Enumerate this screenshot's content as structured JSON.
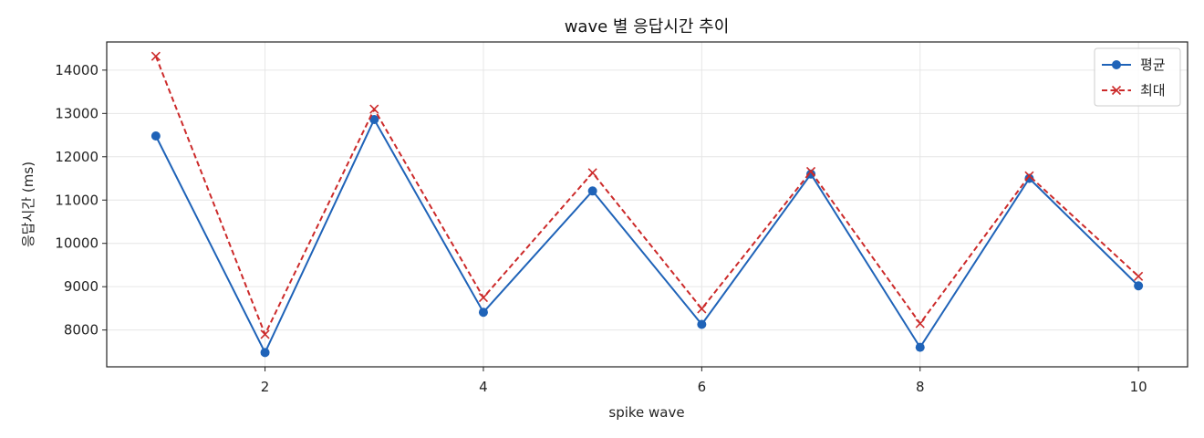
{
  "chart_data": {
    "type": "line",
    "title": "wave 별 응답시간 추이",
    "xlabel": "spike wave",
    "ylabel": "응답시간 (ms)",
    "x": [
      1,
      2,
      3,
      4,
      5,
      6,
      7,
      8,
      9,
      10
    ],
    "x_ticks": [
      2,
      4,
      6,
      8,
      10
    ],
    "y_ticks": [
      8000,
      9000,
      10000,
      11000,
      12000,
      13000,
      14000
    ],
    "xlim": [
      0.55,
      10.45
    ],
    "ylim": [
      7150,
      14650
    ],
    "grid": true,
    "legend_position": "top-right",
    "series": [
      {
        "name": "평균",
        "values": [
          12480,
          7480,
          12860,
          8410,
          11210,
          8130,
          11600,
          7600,
          11500,
          9020
        ],
        "color": "#1f63b8",
        "marker": "circle",
        "line_style": "solid"
      },
      {
        "name": "최대",
        "values": [
          14320,
          7900,
          13100,
          8750,
          11630,
          8490,
          11660,
          8150,
          11560,
          9240
        ],
        "color": "#cc2a2a",
        "marker": "x",
        "line_style": "dashed"
      }
    ]
  }
}
